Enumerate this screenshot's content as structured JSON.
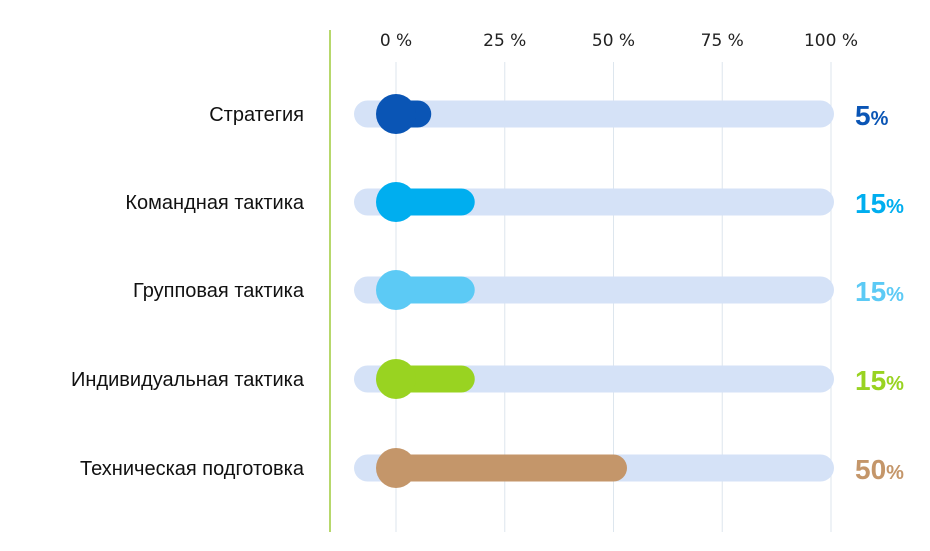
{
  "chart_data": {
    "type": "bar",
    "orientation": "horizontal",
    "x_ticks": [
      "0 %",
      "25 %",
      "50 %",
      "75 %",
      "100 %"
    ],
    "xlim": [
      0,
      100
    ],
    "categories": [
      "Стратегия",
      "Командная тактика",
      "Групповая тактика",
      "Индивидуальная тактика",
      "Техническая подготовка"
    ],
    "series": [
      {
        "values": [
          5,
          15,
          15,
          15,
          50
        ],
        "colors": [
          "#0a55b5",
          "#00aeef",
          "#5ccaf5",
          "#99d321",
          "#c4966a"
        ]
      }
    ],
    "value_labels": [
      "5",
      "15",
      "15",
      "15",
      "50"
    ],
    "value_suffix": "%",
    "track_color": "#d5e2f7",
    "grid": "vertical",
    "grid_color": "#dde6ee",
    "axis_line_color": "#9fcc3b"
  }
}
